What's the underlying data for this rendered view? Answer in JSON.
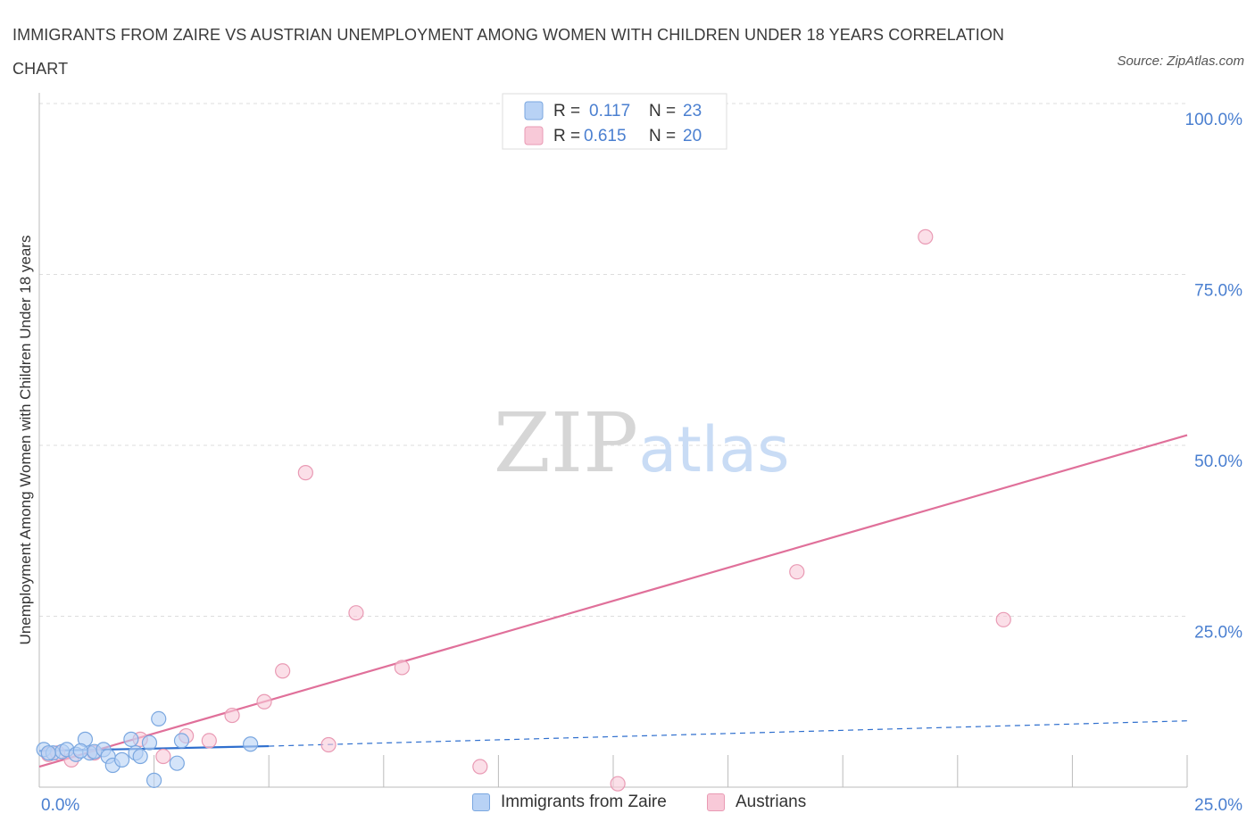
{
  "title": "IMMIGRANTS FROM ZAIRE VS AUSTRIAN UNEMPLOYMENT AMONG WOMEN WITH CHILDREN UNDER 18 YEARS CORRELATION CHART",
  "source": "Source: ZipAtlas.com",
  "watermark": {
    "zip": "ZIP",
    "atlas": "atlas"
  },
  "colors": {
    "blue_fill": "#b8d2f5",
    "blue_stroke": "#7aa7e0",
    "blue_line": "#2f6fce",
    "pink_fill": "#f8c9d8",
    "pink_stroke": "#e99ab4",
    "pink_line": "#e0709a",
    "axis_text": "#4a7fd0",
    "grid": "#dddddd"
  },
  "legend_top": {
    "rows": [
      {
        "r_label": "R =",
        "r_value": "0.117",
        "n_label": "N =",
        "n_value": "23",
        "series": "blue"
      },
      {
        "r_label": "R =",
        "r_value": "0.615",
        "n_label": "N =",
        "n_value": "20",
        "series": "pink"
      }
    ]
  },
  "legend_bottom": [
    {
      "label": "Immigrants from Zaire",
      "series": "blue"
    },
    {
      "label": "Austrians",
      "series": "pink"
    }
  ],
  "chart_data": {
    "type": "scatter",
    "title": "IMMIGRANTS FROM ZAIRE VS AUSTRIAN UNEMPLOYMENT AMONG WOMEN WITH CHILDREN UNDER 18 YEARS CORRELATION CHART",
    "xlabel": "",
    "ylabel": "Unemployment Among Women with Children Under 18 years",
    "xlim": [
      0,
      25
    ],
    "ylim": [
      0,
      100
    ],
    "x_tick_labels": [
      {
        "value": 0,
        "label": "0.0%"
      },
      {
        "value": 25,
        "label": "25.0%"
      }
    ],
    "y_tick_labels": [
      {
        "value": 100,
        "label": "100.0%"
      },
      {
        "value": 75,
        "label": "75.0%"
      },
      {
        "value": 50,
        "label": "50.0%"
      },
      {
        "value": 25,
        "label": "25.0%"
      }
    ],
    "series": [
      {
        "name": "Immigrants from Zaire",
        "color": "blue",
        "points": [
          [
            0.1,
            5.5
          ],
          [
            0.3,
            5.0
          ],
          [
            0.5,
            5.2
          ],
          [
            0.6,
            5.5
          ],
          [
            0.8,
            4.8
          ],
          [
            1.0,
            7.0
          ],
          [
            1.1,
            5.0
          ],
          [
            1.2,
            5.2
          ],
          [
            1.4,
            5.5
          ],
          [
            1.5,
            4.5
          ],
          [
            1.6,
            3.2
          ],
          [
            1.8,
            4.0
          ],
          [
            2.0,
            7.0
          ],
          [
            2.1,
            5.0
          ],
          [
            2.2,
            4.5
          ],
          [
            2.4,
            6.5
          ],
          [
            2.5,
            1.0
          ],
          [
            2.6,
            10.0
          ],
          [
            3.0,
            3.5
          ],
          [
            3.1,
            6.8
          ],
          [
            4.6,
            6.3
          ],
          [
            0.2,
            5.0
          ],
          [
            0.9,
            5.3
          ]
        ],
        "trend_solid": {
          "x": [
            0,
            5
          ],
          "y": [
            5.3,
            6.0
          ]
        },
        "trend_dashed": {
          "x": [
            5,
            25
          ],
          "y": [
            6.0,
            9.7
          ]
        }
      },
      {
        "name": "Austrians",
        "color": "pink",
        "points": [
          [
            0.2,
            4.8
          ],
          [
            0.7,
            4.0
          ],
          [
            1.2,
            5.0
          ],
          [
            2.2,
            7.0
          ],
          [
            2.7,
            4.5
          ],
          [
            3.2,
            7.5
          ],
          [
            3.7,
            6.8
          ],
          [
            4.2,
            10.5
          ],
          [
            4.9,
            12.5
          ],
          [
            5.3,
            17.0
          ],
          [
            5.8,
            46.0
          ],
          [
            6.3,
            6.2
          ],
          [
            6.9,
            25.5
          ],
          [
            7.9,
            17.5
          ],
          [
            9.6,
            3.0
          ],
          [
            12.6,
            0.5
          ],
          [
            16.5,
            31.5
          ],
          [
            19.3,
            80.5
          ],
          [
            21.0,
            24.5
          ],
          [
            0.4,
            5.0
          ]
        ],
        "trend_solid": {
          "x": [
            0,
            25
          ],
          "y": [
            3.0,
            51.5
          ]
        }
      }
    ]
  }
}
